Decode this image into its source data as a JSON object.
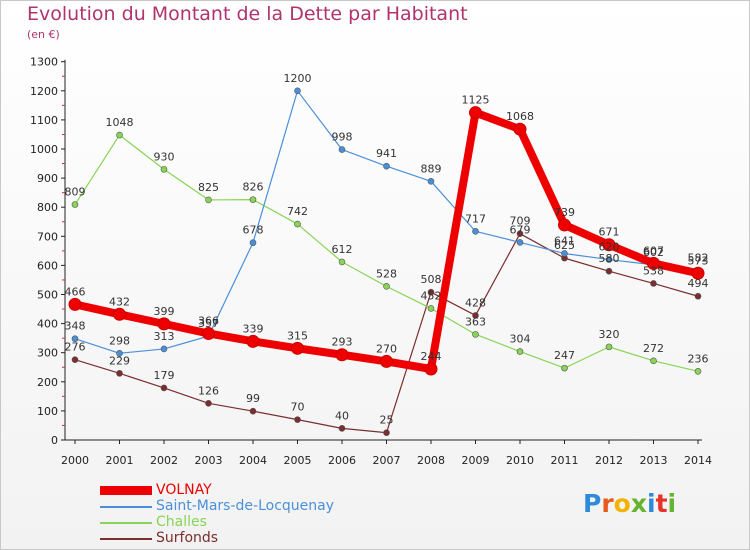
{
  "title": "Evolution du Montant de la Dette par Habitant",
  "subtitle": "(en €)",
  "logo": {
    "text": "Proxiti",
    "colors": [
      "#2e8bd8",
      "#e65a1e",
      "#f2b300",
      "#66b32e",
      "#2e8bd8",
      "#e6332a",
      "#66b32e"
    ]
  },
  "chart_data": {
    "type": "line",
    "title": "Evolution du Montant de la Dette par Habitant",
    "subtitle": "(en €)",
    "xlabel": "",
    "ylabel": "",
    "x": [
      "2000",
      "2001",
      "2002",
      "2003",
      "2004",
      "2005",
      "2006",
      "2007",
      "2008",
      "2009",
      "2010",
      "2011",
      "2012",
      "2013",
      "2014"
    ],
    "ylim": [
      0,
      1300
    ],
    "yticks": [
      0,
      100,
      200,
      300,
      400,
      500,
      600,
      700,
      800,
      900,
      1000,
      1100,
      1200,
      1300
    ],
    "grid": false,
    "legend_position": "bottom-left",
    "series": [
      {
        "name": "VOLNAY",
        "color": "#ee0000",
        "values": [
          466,
          432,
          399,
          366,
          339,
          315,
          293,
          270,
          244,
          1125,
          1068,
          739,
          671,
          607,
          573
        ],
        "labels": [
          "466",
          "432",
          "399",
          "366",
          "339",
          "315",
          "293",
          "270",
          "244",
          "1125",
          "1068",
          "739",
          "671",
          "607",
          "573"
        ]
      },
      {
        "name": "Saint-Mars-de-Locquenay",
        "color": "#4a90d9",
        "values": [
          348,
          298,
          313,
          357,
          678,
          1200,
          998,
          941,
          889,
          717,
          679,
          641,
          620,
          602,
          582
        ],
        "labels": [
          "348",
          "298",
          "313",
          "357",
          "678",
          "1200",
          "998",
          "941",
          "889",
          "717",
          "679",
          "641",
          "620",
          "602",
          "582"
        ]
      },
      {
        "name": "Challes",
        "color": "#88d457",
        "values": [
          809,
          1048,
          930,
          825,
          826,
          742,
          612,
          528,
          452,
          363,
          304,
          247,
          320,
          272,
          236
        ],
        "labels": [
          "809",
          "1048",
          "930",
          "825",
          "826",
          "742",
          "612",
          "528",
          "452",
          "363",
          "304",
          "247",
          "320",
          "272",
          "236"
        ]
      },
      {
        "name": "Surfonds",
        "color": "#7a2e2e",
        "values": [
          276,
          229,
          179,
          126,
          99,
          70,
          40,
          25,
          508,
          428,
          709,
          625,
          580,
          538,
          494
        ],
        "labels": [
          "276",
          "229",
          "179",
          "126",
          "99",
          "70",
          "40",
          "25",
          "508",
          "428",
          "709",
          "625",
          "580",
          "538",
          "494"
        ]
      }
    ]
  }
}
